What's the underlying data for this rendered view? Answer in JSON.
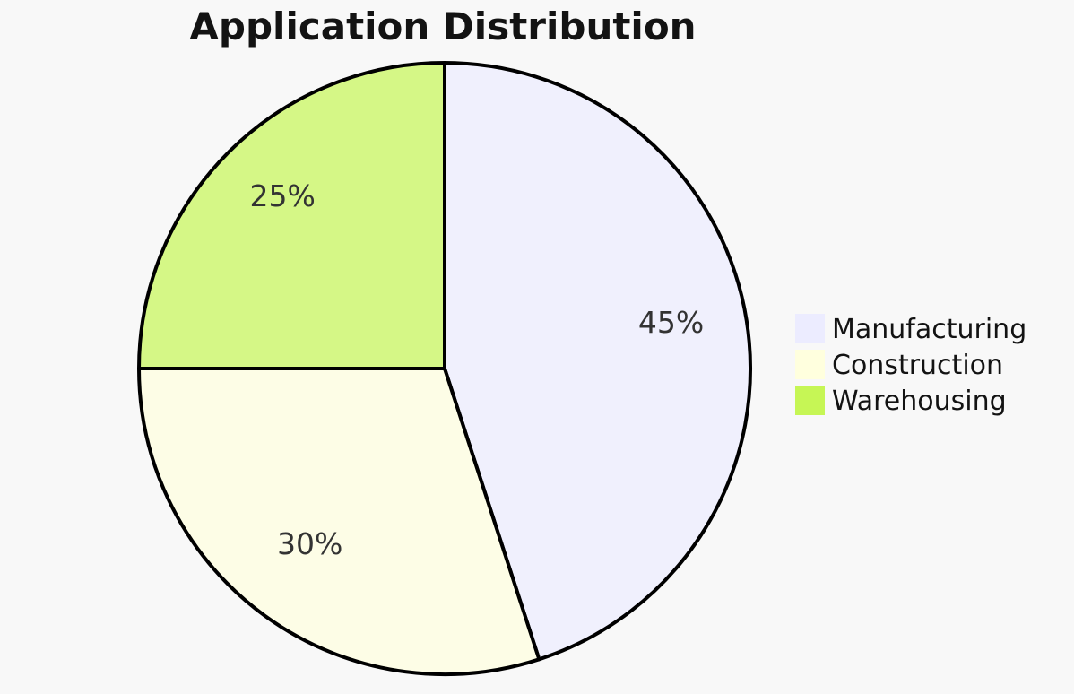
{
  "page": {
    "background": "#F8F8F8"
  },
  "chart_data": {
    "type": "pie",
    "title": "Application Distribution",
    "categories": [
      "Manufacturing",
      "Construction",
      "Warehousing"
    ],
    "values": [
      45,
      30,
      25
    ],
    "slice_labels": [
      "45%",
      "30%",
      "25%"
    ],
    "colors": [
      "#ECECFF",
      "#FFFFDE",
      "#C6F655"
    ],
    "slice_fill_opacity": 0.7,
    "stroke_color": "#000000",
    "stroke_width": 4,
    "label_color": "#333333",
    "title_color": "#131313",
    "legend_text_color": "#131313",
    "legend_position": "right",
    "start_angle_deg": 0,
    "clockwise": true,
    "legend_entries": [
      "Manufacturing",
      "Construction",
      "Warehousing"
    ]
  }
}
